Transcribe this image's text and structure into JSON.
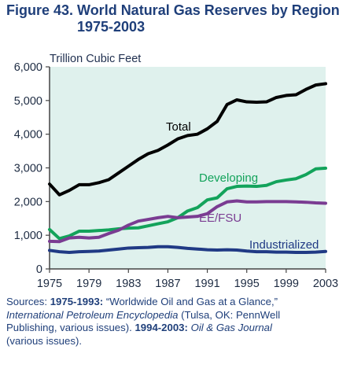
{
  "title": {
    "line1": "Figure 43.  World Natural Gas Reserves by Region,",
    "line2": "1975-2003"
  },
  "colors": {
    "title": "#1f3f7a",
    "plot_background": "#dff1ed",
    "axis": "#444444",
    "Total": "#000000",
    "Developing": "#13a35b",
    "EE/FSU": "#7a3c92",
    "Industrialized": "#203a85"
  },
  "chart_data": {
    "type": "line",
    "ylabel": "Trillion Cubic Feet",
    "ylim": [
      0,
      6000
    ],
    "xlim": [
      1975,
      2003
    ],
    "grid": false,
    "x_ticks": [
      "1975",
      "1979",
      "1983",
      "1987",
      "1991",
      "1995",
      "1999",
      "2003"
    ],
    "y_ticks": [
      "0",
      "1,000",
      "2,000",
      "3,000",
      "4,000",
      "5,000",
      "6,000"
    ],
    "x": [
      1975,
      1976,
      1977,
      1978,
      1979,
      1980,
      1981,
      1982,
      1983,
      1984,
      1985,
      1986,
      1987,
      1988,
      1989,
      1990,
      1991,
      1992,
      1993,
      1994,
      1995,
      1996,
      1997,
      1998,
      1999,
      2000,
      2001,
      2002,
      2003
    ],
    "series": [
      {
        "name": "Total",
        "values": [
          2520,
          2200,
          2330,
          2500,
          2500,
          2560,
          2650,
          2850,
          3050,
          3250,
          3420,
          3520,
          3680,
          3860,
          3960,
          4000,
          4160,
          4380,
          4880,
          5020,
          4960,
          4950,
          4960,
          5090,
          5150,
          5170,
          5330,
          5460,
          5500
        ]
      },
      {
        "name": "Developing",
        "values": [
          1170,
          900,
          980,
          1120,
          1120,
          1140,
          1160,
          1190,
          1210,
          1220,
          1280,
          1340,
          1400,
          1520,
          1720,
          1820,
          2050,
          2110,
          2380,
          2450,
          2460,
          2450,
          2480,
          2590,
          2640,
          2680,
          2800,
          2970,
          2990
        ]
      },
      {
        "name": "EE/FSU",
        "values": [
          820,
          810,
          920,
          940,
          920,
          940,
          1050,
          1150,
          1300,
          1420,
          1470,
          1520,
          1560,
          1520,
          1540,
          1560,
          1640,
          1850,
          1990,
          2020,
          1990,
          1990,
          2000,
          2000,
          2000,
          1990,
          1980,
          1960,
          1950
        ]
      },
      {
        "name": "Industrialized",
        "values": [
          550,
          510,
          490,
          510,
          520,
          530,
          560,
          590,
          620,
          630,
          640,
          660,
          660,
          640,
          610,
          590,
          570,
          560,
          570,
          560,
          530,
          510,
          510,
          500,
          500,
          490,
          490,
          500,
          520
        ]
      }
    ]
  },
  "sources": {
    "prefix": "Sources: ",
    "range1": "1975-1993:",
    "text1": " “Worldwide Oil and Gas at a Glance,”",
    "pub1": "International Petroleum Encyclopedia",
    "text2": " (Tulsa, OK: PennWell",
    "text3": "Publishing, various issues). ",
    "range2": "1994-2003:",
    "pub2": " Oil & Gas Journal",
    "text4": "(various issues)."
  }
}
